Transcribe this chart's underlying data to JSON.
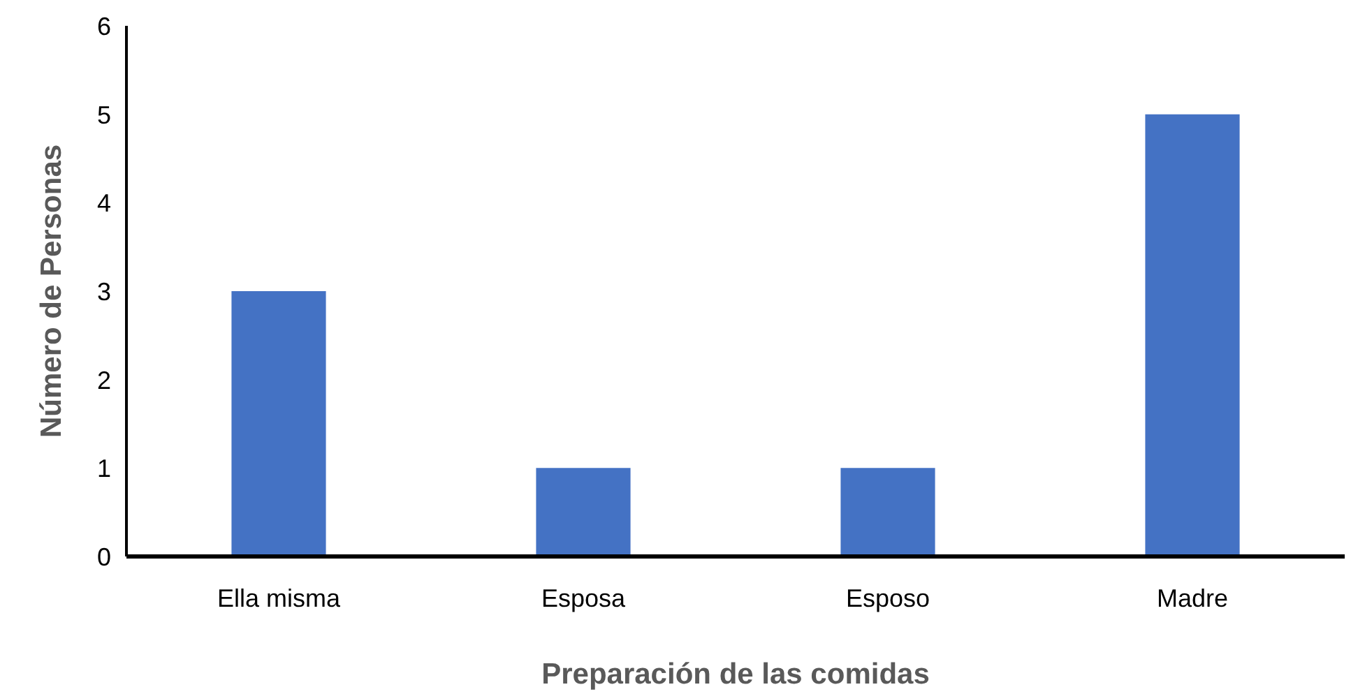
{
  "chart_data": {
    "type": "bar",
    "xlabel": "Preparación de las comidas",
    "ylabel": "Número de Personas",
    "categories": [
      "Ella misma",
      "Esposa",
      "Esposo",
      "Madre"
    ],
    "values": [
      3,
      1,
      1,
      5
    ],
    "color": "#4472c4",
    "ylim": [
      0,
      6
    ],
    "yticks": [
      0,
      1,
      2,
      3,
      4,
      5,
      6
    ],
    "grid": false
  }
}
